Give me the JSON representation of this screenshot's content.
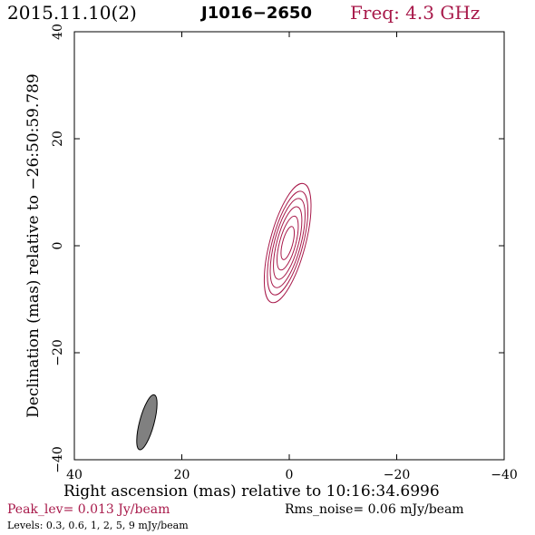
{
  "header": {
    "date": "2015.11.10(2)",
    "source": "J1016−2650",
    "frequency": "Freq: 4.3 GHz"
  },
  "footer": {
    "peak": "Peak_lev=  0.013 Jy/beam",
    "rms": "Rms_noise= 0.06 mJy/beam",
    "levels": "Levels: 0.3, 0.6,   1,   2,   5,   9 mJy/beam"
  },
  "colors": {
    "contour": "#a8194a",
    "beam_fill": "#808080",
    "axis": "#000000"
  },
  "chart_data": {
    "type": "contour",
    "xlabel": "Right ascension (mas) relative to 10:16:34.6996",
    "ylabel": "Declination (mas) relative to −26:50:59.789",
    "xlim": [
      40,
      -40
    ],
    "ylim": [
      -40,
      40
    ],
    "x_ticks": [
      40,
      20,
      0,
      -20,
      -40
    ],
    "y_ticks": [
      -40,
      -20,
      0,
      20,
      40
    ],
    "x_tick_labels": [
      "40",
      "20",
      "0",
      "−20",
      "−40"
    ],
    "y_tick_labels": [
      "−40",
      "−20",
      "0",
      "20",
      "40"
    ],
    "contour_levels_mJy": [
      0.3,
      0.6,
      1,
      2,
      5,
      9
    ],
    "source_center": [
      0.3,
      0.5
    ],
    "position_angle_deg": 15,
    "contours": [
      {
        "level": 0.3,
        "semi_major": 11.5,
        "semi_minor": 3.3
      },
      {
        "level": 0.6,
        "semi_major": 10.0,
        "semi_minor": 2.85
      },
      {
        "level": 1,
        "semi_major": 8.6,
        "semi_minor": 2.45
      },
      {
        "level": 2,
        "semi_major": 7.0,
        "semi_minor": 2.0
      },
      {
        "level": 5,
        "semi_major": 5.2,
        "semi_minor": 1.5
      },
      {
        "level": 9,
        "semi_major": 3.2,
        "semi_minor": 0.95
      }
    ],
    "beam": {
      "center": [
        26.5,
        -33.0
      ],
      "semi_major": 5.3,
      "semi_minor": 1.35,
      "position_angle_deg": 15
    }
  }
}
